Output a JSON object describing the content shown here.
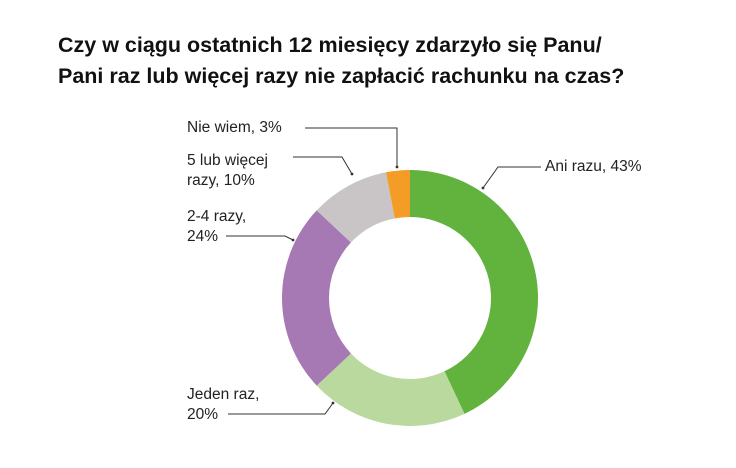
{
  "title": {
    "line1": "Czy w ciągu ostatnich 12 miesięcy zdarzyło się Panu/",
    "line2": "Pani raz lub więcej razy nie zapłacić rachunku na czas?"
  },
  "labels": {
    "ani_razu": "Ani razu, 43%",
    "jeden_raz_l1": "Jeden raz,",
    "jeden_raz_l2": "20%",
    "dwa_cztery_l1": "2-4 razy,",
    "dwa_cztery_l2": "24%",
    "piec_l1": "5 lub więcej",
    "piec_l2": "razy, 10%",
    "nie_wiem": "Nie wiem, 3%"
  },
  "chart_data": {
    "type": "pie",
    "subtype": "donut",
    "title": "Czy w ciągu ostatnich 12 miesięcy zdarzyło się Panu/Pani raz lub więcej razy nie zapłacić rachunku na czas?",
    "categories": [
      "Ani razu",
      "Jeden raz",
      "2-4 razy",
      "5 lub więcej razy",
      "Nie wiem"
    ],
    "values": [
      43,
      20,
      24,
      10,
      3
    ],
    "unit": "%",
    "colors": [
      "#62b23e",
      "#bad99e",
      "#a679b5",
      "#c9c4c5",
      "#f39c26"
    ],
    "start_angle": "12 o'clock, clockwise",
    "legend": "none (callout labels)"
  }
}
